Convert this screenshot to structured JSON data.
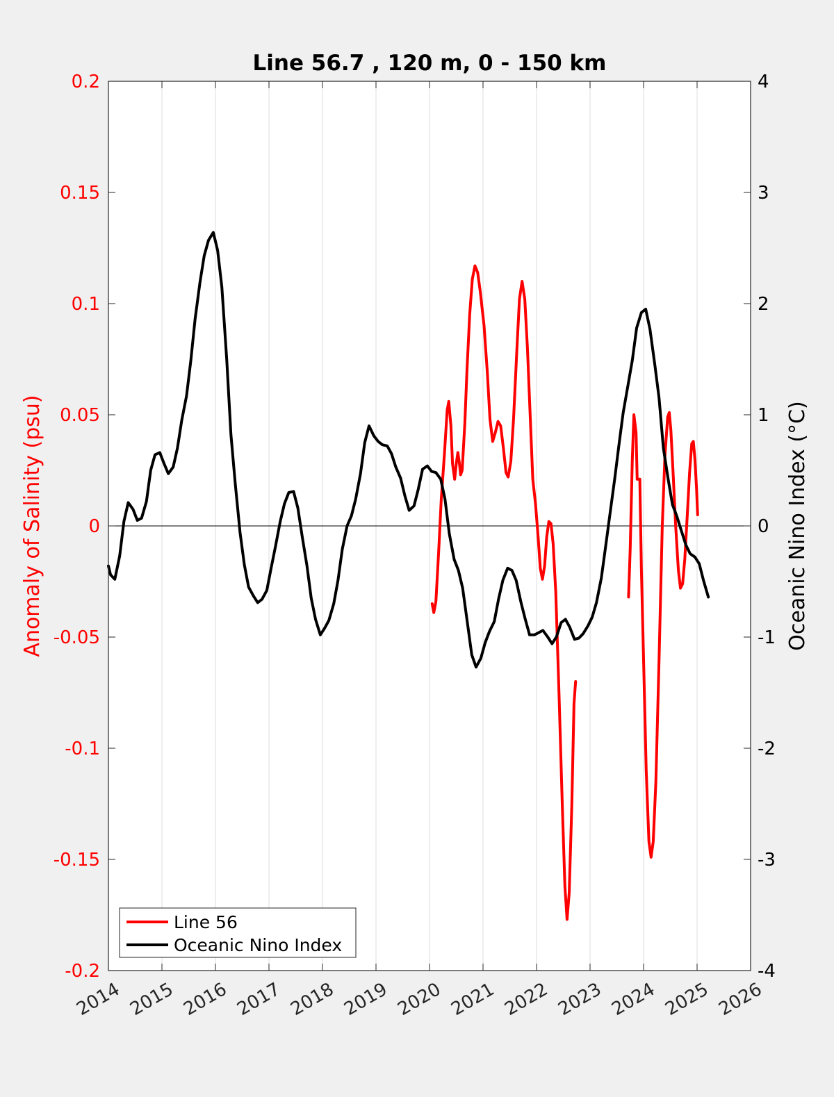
{
  "chart_data": {
    "type": "line",
    "title": "Line 56.7 , 120 m, 0 - 150 km",
    "xlabel": "",
    "ylabel_left": "Anomaly of Salinity (psu)",
    "ylabel_right": "Oceanic Nino Index (°C)",
    "xlim": [
      2014,
      2026
    ],
    "ylim_left": [
      -0.2,
      0.2
    ],
    "ylim_right": [
      -4,
      4
    ],
    "x_ticks": [
      "2014",
      "2015",
      "2016",
      "2017",
      "2018",
      "2019",
      "2020",
      "2021",
      "2022",
      "2023",
      "2024",
      "2025",
      "2026"
    ],
    "y_left_ticks": [
      "-0.2",
      "-0.15",
      "-0.1",
      "-0.05",
      "0",
      "0.05",
      "0.1",
      "0.15",
      "0.2"
    ],
    "y_right_ticks": [
      "-4",
      "-3",
      "-2",
      "-1",
      "0",
      "1",
      "2",
      "3",
      "4"
    ],
    "grid": "vertical",
    "zero_line": true,
    "legend_position": "bottom-left",
    "colors": {
      "salinity": "#ff0000",
      "oni": "#000000",
      "left_axis": "#ff0000",
      "right_axis": "#000000"
    },
    "series": [
      {
        "name": "Line 56",
        "axis": "left",
        "color": "#ff0000",
        "segments": [
          [
            [
              2020.05,
              -0.035
            ],
            [
              2020.08,
              -0.039
            ],
            [
              2020.12,
              -0.034
            ],
            [
              2020.17,
              -0.012
            ],
            [
              2020.22,
              0.012
            ],
            [
              2020.28,
              0.033
            ],
            [
              2020.33,
              0.052
            ],
            [
              2020.36,
              0.056
            ],
            [
              2020.4,
              0.045
            ],
            [
              2020.43,
              0.028
            ],
            [
              2020.47,
              0.021
            ],
            [
              2020.5,
              0.028
            ],
            [
              2020.53,
              0.033
            ],
            [
              2020.56,
              0.028
            ],
            [
              2020.58,
              0.023
            ],
            [
              2020.61,
              0.025
            ],
            [
              2020.66,
              0.046
            ],
            [
              2020.7,
              0.07
            ],
            [
              2020.75,
              0.095
            ],
            [
              2020.8,
              0.111
            ],
            [
              2020.85,
              0.117
            ],
            [
              2020.9,
              0.114
            ],
            [
              2020.95,
              0.105
            ],
            [
              2021.02,
              0.09
            ],
            [
              2021.08,
              0.069
            ],
            [
              2021.13,
              0.048
            ],
            [
              2021.18,
              0.038
            ],
            [
              2021.23,
              0.042
            ],
            [
              2021.28,
              0.047
            ],
            [
              2021.33,
              0.045
            ],
            [
              2021.38,
              0.035
            ],
            [
              2021.43,
              0.024
            ],
            [
              2021.47,
              0.022
            ],
            [
              2021.52,
              0.029
            ],
            [
              2021.57,
              0.048
            ],
            [
              2021.63,
              0.078
            ],
            [
              2021.68,
              0.102
            ],
            [
              2021.73,
              0.11
            ],
            [
              2021.78,
              0.102
            ],
            [
              2021.83,
              0.08
            ],
            [
              2021.88,
              0.05
            ],
            [
              2021.93,
              0.021
            ],
            [
              2021.98,
              0.01
            ],
            [
              2022.03,
              -0.005
            ],
            [
              2022.07,
              -0.019
            ],
            [
              2022.11,
              -0.024
            ],
            [
              2022.15,
              -0.018
            ],
            [
              2022.19,
              -0.005
            ],
            [
              2022.23,
              0.002
            ],
            [
              2022.27,
              0.001
            ],
            [
              2022.31,
              -0.008
            ],
            [
              2022.36,
              -0.03
            ],
            [
              2022.42,
              -0.075
            ],
            [
              2022.48,
              -0.125
            ],
            [
              2022.53,
              -0.162
            ],
            [
              2022.57,
              -0.177
            ],
            [
              2022.61,
              -0.165
            ],
            [
              2022.66,
              -0.125
            ],
            [
              2022.7,
              -0.08
            ],
            [
              2022.73,
              -0.07
            ]
          ],
          [
            [
              2023.72,
              -0.032
            ],
            [
              2023.75,
              -0.01
            ],
            [
              2023.79,
              0.03
            ],
            [
              2023.82,
              0.05
            ],
            [
              2023.86,
              0.042
            ],
            [
              2023.88,
              0.021
            ],
            [
              2023.93,
              0.021
            ],
            [
              2023.96,
              -0.02
            ],
            [
              2024.0,
              -0.06
            ],
            [
              2024.05,
              -0.11
            ],
            [
              2024.1,
              -0.142
            ],
            [
              2024.14,
              -0.149
            ],
            [
              2024.18,
              -0.142
            ],
            [
              2024.23,
              -0.115
            ],
            [
              2024.29,
              -0.06
            ],
            [
              2024.35,
              0.0
            ],
            [
              2024.4,
              0.032
            ],
            [
              2024.45,
              0.049
            ],
            [
              2024.48,
              0.051
            ],
            [
              2024.51,
              0.043
            ],
            [
              2024.55,
              0.025
            ],
            [
              2024.6,
              0.0
            ],
            [
              2024.65,
              -0.02
            ],
            [
              2024.69,
              -0.028
            ],
            [
              2024.73,
              -0.026
            ],
            [
              2024.77,
              -0.015
            ],
            [
              2024.82,
              0.006
            ],
            [
              2024.86,
              0.024
            ],
            [
              2024.9,
              0.037
            ],
            [
              2024.93,
              0.038
            ],
            [
              2024.96,
              0.03
            ],
            [
              2024.99,
              0.017
            ],
            [
              2025.01,
              0.005
            ]
          ]
        ]
      },
      {
        "name": "Oceanic Nino Index",
        "axis": "right",
        "color": "#000000",
        "values": [
          [
            2014.0,
            -0.36
          ],
          [
            2014.04,
            -0.44
          ],
          [
            2014.12,
            -0.48
          ],
          [
            2014.21,
            -0.27
          ],
          [
            2014.29,
            0.04
          ],
          [
            2014.37,
            0.21
          ],
          [
            2014.46,
            0.15
          ],
          [
            2014.54,
            0.05
          ],
          [
            2014.62,
            0.07
          ],
          [
            2014.71,
            0.22
          ],
          [
            2014.79,
            0.5
          ],
          [
            2014.87,
            0.64
          ],
          [
            2014.96,
            0.66
          ],
          [
            2015.04,
            0.56
          ],
          [
            2015.12,
            0.47
          ],
          [
            2015.21,
            0.53
          ],
          [
            2015.29,
            0.7
          ],
          [
            2015.37,
            0.95
          ],
          [
            2015.46,
            1.17
          ],
          [
            2015.54,
            1.49
          ],
          [
            2015.62,
            1.86
          ],
          [
            2015.71,
            2.19
          ],
          [
            2015.79,
            2.43
          ],
          [
            2015.87,
            2.57
          ],
          [
            2015.96,
            2.64
          ],
          [
            2016.04,
            2.48
          ],
          [
            2016.12,
            2.15
          ],
          [
            2016.21,
            1.5
          ],
          [
            2016.29,
            0.82
          ],
          [
            2016.37,
            0.38
          ],
          [
            2016.46,
            -0.06
          ],
          [
            2016.54,
            -0.35
          ],
          [
            2016.62,
            -0.55
          ],
          [
            2016.71,
            -0.63
          ],
          [
            2016.79,
            -0.69
          ],
          [
            2016.87,
            -0.66
          ],
          [
            2016.96,
            -0.58
          ],
          [
            2017.04,
            -0.38
          ],
          [
            2017.12,
            -0.19
          ],
          [
            2017.21,
            0.04
          ],
          [
            2017.29,
            0.2
          ],
          [
            2017.37,
            0.3
          ],
          [
            2017.46,
            0.31
          ],
          [
            2017.54,
            0.16
          ],
          [
            2017.62,
            -0.09
          ],
          [
            2017.71,
            -0.36
          ],
          [
            2017.79,
            -0.65
          ],
          [
            2017.87,
            -0.84
          ],
          [
            2017.96,
            -0.98
          ],
          [
            2018.04,
            -0.92
          ],
          [
            2018.12,
            -0.85
          ],
          [
            2018.21,
            -0.7
          ],
          [
            2018.29,
            -0.49
          ],
          [
            2018.37,
            -0.21
          ],
          [
            2018.46,
            0.0
          ],
          [
            2018.54,
            0.09
          ],
          [
            2018.62,
            0.24
          ],
          [
            2018.71,
            0.47
          ],
          [
            2018.79,
            0.75
          ],
          [
            2018.87,
            0.9
          ],
          [
            2018.96,
            0.81
          ],
          [
            2019.04,
            0.76
          ],
          [
            2019.12,
            0.73
          ],
          [
            2019.21,
            0.72
          ],
          [
            2019.29,
            0.65
          ],
          [
            2019.37,
            0.53
          ],
          [
            2019.46,
            0.43
          ],
          [
            2019.54,
            0.27
          ],
          [
            2019.62,
            0.14
          ],
          [
            2019.71,
            0.18
          ],
          [
            2019.79,
            0.33
          ],
          [
            2019.87,
            0.51
          ],
          [
            2019.96,
            0.54
          ],
          [
            2020.04,
            0.49
          ],
          [
            2020.12,
            0.48
          ],
          [
            2020.21,
            0.42
          ],
          [
            2020.29,
            0.24
          ],
          [
            2020.37,
            -0.07
          ],
          [
            2020.46,
            -0.3
          ],
          [
            2020.54,
            -0.4
          ],
          [
            2020.62,
            -0.56
          ],
          [
            2020.71,
            -0.88
          ],
          [
            2020.79,
            -1.16
          ],
          [
            2020.87,
            -1.27
          ],
          [
            2020.96,
            -1.19
          ],
          [
            2021.04,
            -1.05
          ],
          [
            2021.12,
            -0.95
          ],
          [
            2021.21,
            -0.86
          ],
          [
            2021.29,
            -0.66
          ],
          [
            2021.37,
            -0.49
          ],
          [
            2021.46,
            -0.38
          ],
          [
            2021.54,
            -0.4
          ],
          [
            2021.62,
            -0.49
          ],
          [
            2021.71,
            -0.69
          ],
          [
            2021.79,
            -0.84
          ],
          [
            2021.87,
            -0.98
          ],
          [
            2021.96,
            -0.98
          ],
          [
            2022.04,
            -0.96
          ],
          [
            2022.12,
            -0.94
          ],
          [
            2022.21,
            -1.0
          ],
          [
            2022.29,
            -1.06
          ],
          [
            2022.37,
            -1.0
          ],
          [
            2022.46,
            -0.87
          ],
          [
            2022.54,
            -0.84
          ],
          [
            2022.62,
            -0.91
          ],
          [
            2022.71,
            -1.02
          ],
          [
            2022.79,
            -1.01
          ],
          [
            2022.87,
            -0.97
          ],
          [
            2022.96,
            -0.9
          ],
          [
            2023.04,
            -0.82
          ],
          [
            2023.12,
            -0.69
          ],
          [
            2023.21,
            -0.47
          ],
          [
            2023.29,
            -0.19
          ],
          [
            2023.37,
            0.1
          ],
          [
            2023.46,
            0.42
          ],
          [
            2023.54,
            0.73
          ],
          [
            2023.62,
            1.02
          ],
          [
            2023.71,
            1.27
          ],
          [
            2023.79,
            1.49
          ],
          [
            2023.87,
            1.78
          ],
          [
            2023.96,
            1.92
          ],
          [
            2024.04,
            1.95
          ],
          [
            2024.12,
            1.77
          ],
          [
            2024.21,
            1.45
          ],
          [
            2024.29,
            1.15
          ],
          [
            2024.37,
            0.7
          ],
          [
            2024.46,
            0.42
          ],
          [
            2024.54,
            0.19
          ],
          [
            2024.62,
            0.09
          ],
          [
            2024.71,
            -0.05
          ],
          [
            2024.79,
            -0.17
          ],
          [
            2024.87,
            -0.25
          ],
          [
            2024.96,
            -0.28
          ],
          [
            2025.04,
            -0.34
          ],
          [
            2025.12,
            -0.49
          ],
          [
            2025.21,
            -0.64
          ]
        ]
      }
    ],
    "legend": [
      "Line 56",
      "Oceanic Nino Index"
    ]
  }
}
